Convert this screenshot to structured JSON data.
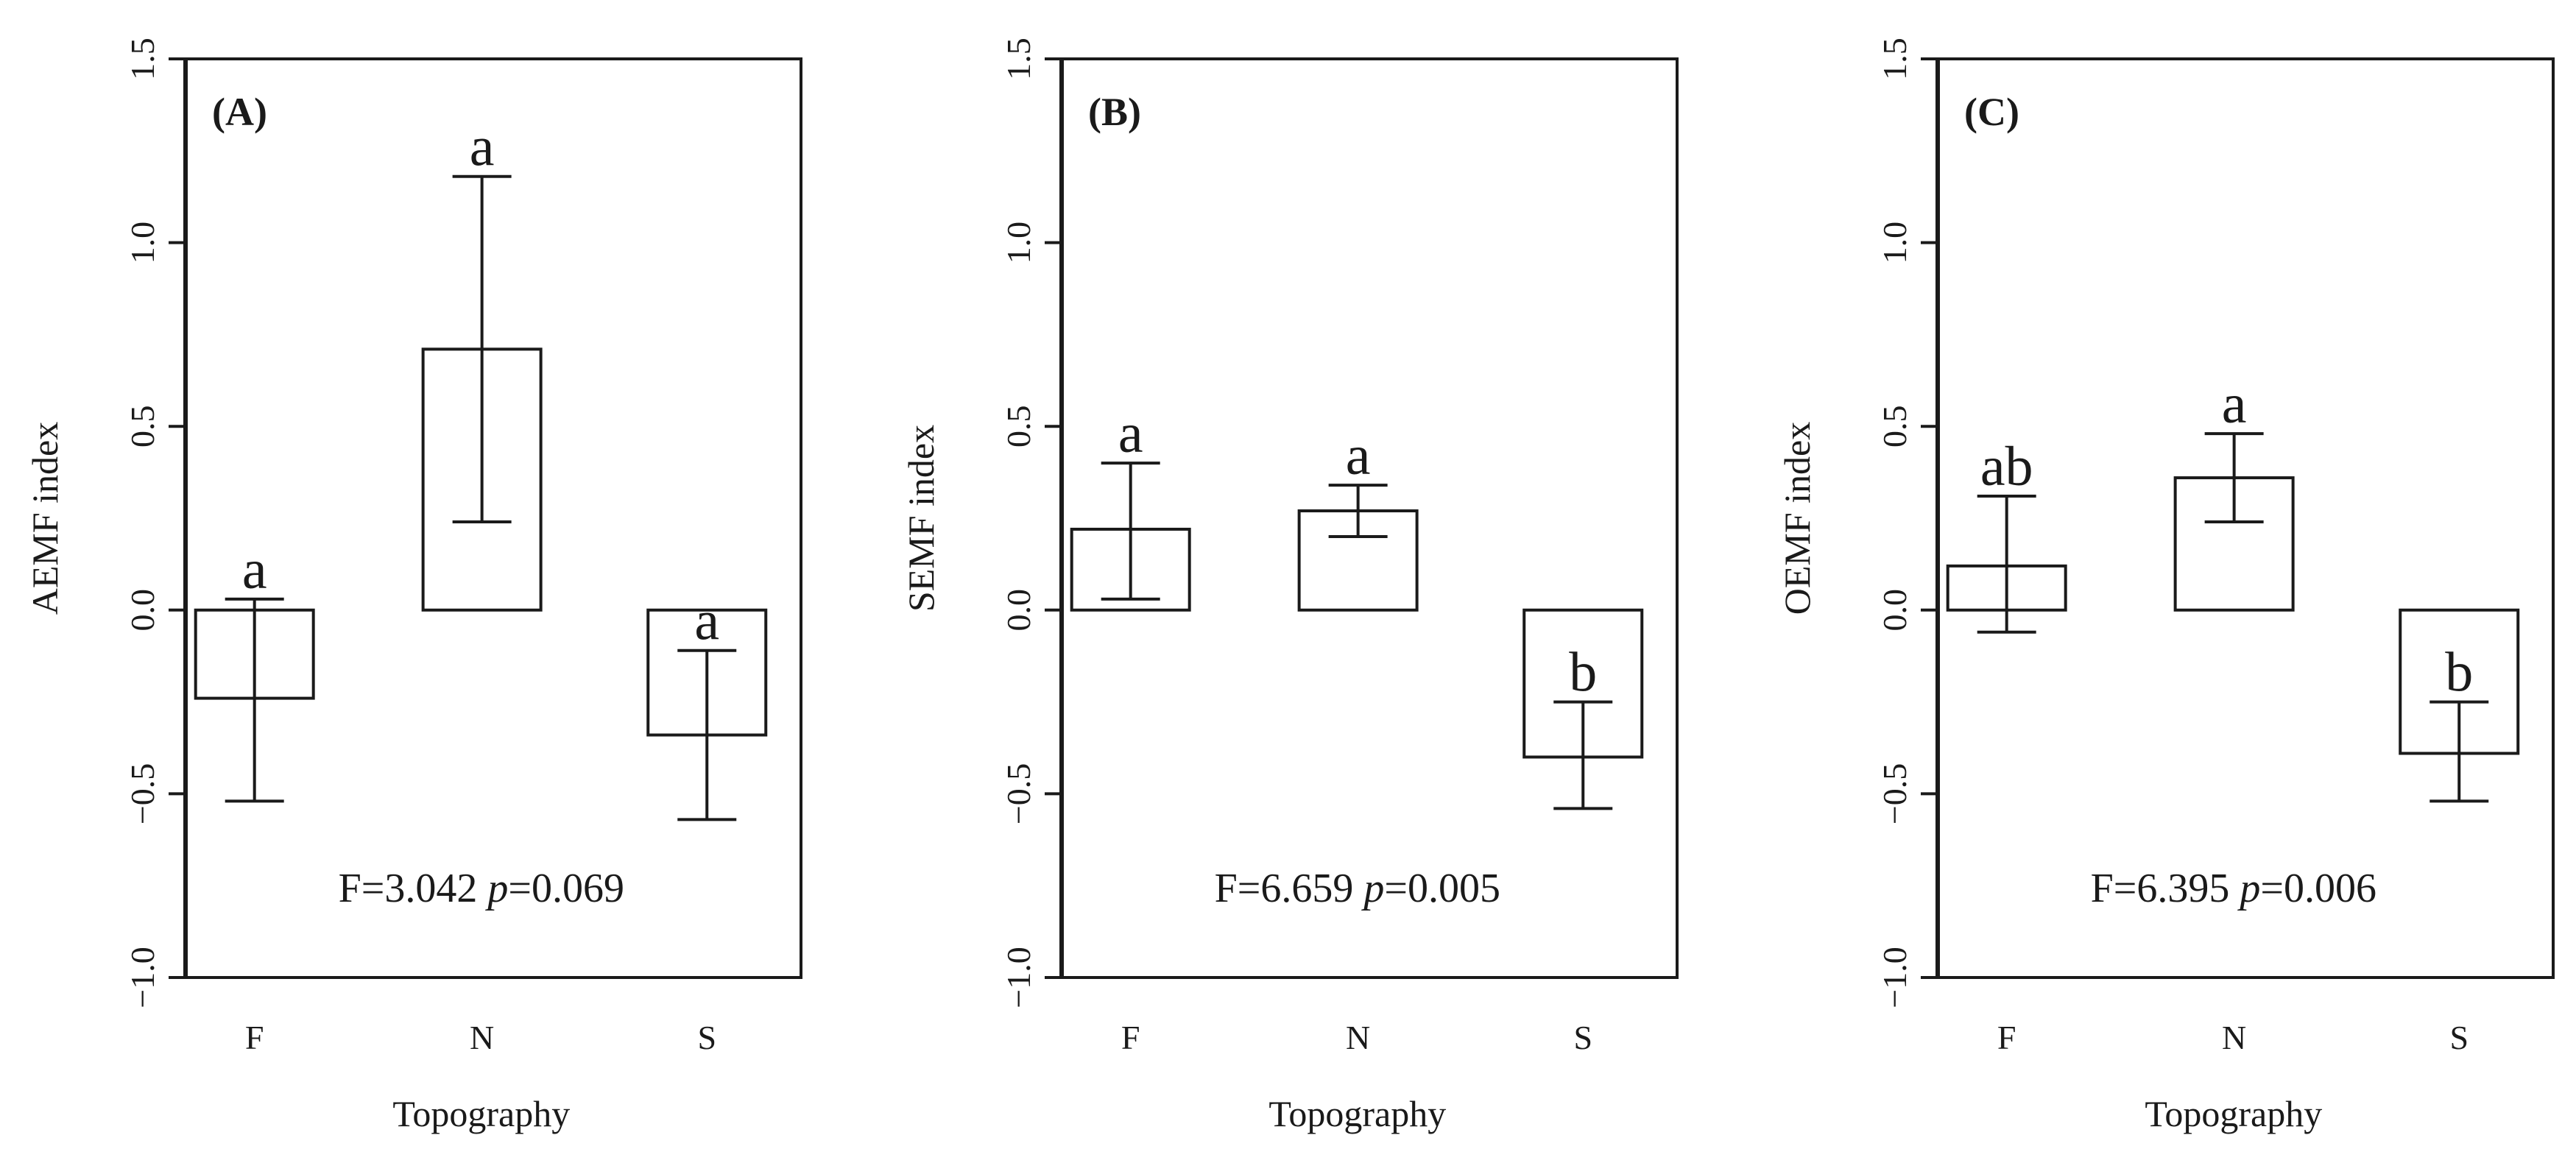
{
  "chart_data": [
    {
      "type": "bar",
      "panel_label": "(A)",
      "categories": [
        "F",
        "N",
        "S"
      ],
      "values": [
        -0.24,
        0.71,
        -0.34
      ],
      "error_low": [
        -0.52,
        0.24,
        -0.57
      ],
      "error_high": [
        0.03,
        1.18,
        -0.11
      ],
      "letters": [
        "a",
        "a",
        "a"
      ],
      "xlabel": "Topography",
      "ylabel": "AEMF index",
      "ylim": [
        -1.0,
        1.5
      ],
      "yticks": [
        "−1.0",
        "−0.5",
        "0.0",
        "0.5",
        "1.0",
        "1.5"
      ],
      "stat": {
        "f": "F=3.042 ",
        "p_symbol": "p",
        "p_value": "=0.069"
      }
    },
    {
      "type": "bar",
      "panel_label": "(B)",
      "categories": [
        "F",
        "N",
        "S"
      ],
      "values": [
        0.22,
        0.27,
        -0.4
      ],
      "error_low": [
        0.03,
        0.2,
        -0.54
      ],
      "error_high": [
        0.4,
        0.34,
        -0.25
      ],
      "letters": [
        "a",
        "a",
        "b"
      ],
      "xlabel": "Topography",
      "ylabel": "SEMF index",
      "ylim": [
        -1.0,
        1.5
      ],
      "yticks": [
        "−1.0",
        "−0.5",
        "0.0",
        "0.5",
        "1.0",
        "1.5"
      ],
      "stat": {
        "f": "F=6.659 ",
        "p_symbol": "p",
        "p_value": "=0.005"
      }
    },
    {
      "type": "bar",
      "panel_label": "(C)",
      "categories": [
        "F",
        "N",
        "S"
      ],
      "values": [
        0.12,
        0.36,
        -0.39
      ],
      "error_low": [
        -0.06,
        0.24,
        -0.52
      ],
      "error_high": [
        0.31,
        0.48,
        -0.25
      ],
      "letters": [
        "ab",
        "a",
        "b"
      ],
      "xlabel": "Topography",
      "ylabel": "OEMF index",
      "ylim": [
        -1.0,
        1.5
      ],
      "yticks": [
        "−1.0",
        "−0.5",
        "0.0",
        "0.5",
        "1.0",
        "1.5"
      ],
      "stat": {
        "f": "F=6.395 ",
        "p_symbol": "p",
        "p_value": "=0.006"
      }
    }
  ]
}
